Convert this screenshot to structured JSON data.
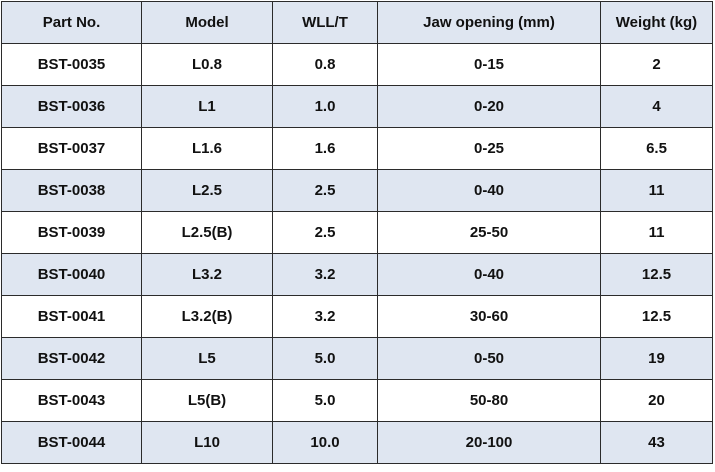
{
  "table": {
    "headers": [
      "Part No.",
      "Model",
      "WLL/T",
      "Jaw opening (mm)",
      "Weight (kg)"
    ],
    "rows": [
      [
        "BST-0035",
        "L0.8",
        "0.8",
        "0-15",
        "2"
      ],
      [
        "BST-0036",
        "L1",
        "1.0",
        "0-20",
        "4"
      ],
      [
        "BST-0037",
        "L1.6",
        "1.6",
        "0-25",
        "6.5"
      ],
      [
        "BST-0038",
        "L2.5",
        "2.5",
        "0-40",
        "11"
      ],
      [
        "BST-0039",
        "L2.5(B)",
        "2.5",
        "25-50",
        "11"
      ],
      [
        "BST-0040",
        "L3.2",
        "3.2",
        "0-40",
        "12.5"
      ],
      [
        "BST-0041",
        "L3.2(B)",
        "3.2",
        "30-60",
        "12.5"
      ],
      [
        "BST-0042",
        "L5",
        "5.0",
        "0-50",
        "19"
      ],
      [
        "BST-0043",
        "L5(B)",
        "5.0",
        "50-80",
        "20"
      ],
      [
        "BST-0044",
        "L10",
        "10.0",
        "20-100",
        "43"
      ]
    ]
  },
  "colors": {
    "header_bg": "#dfe6f1",
    "stripe_bg": "#dfe6f1",
    "row_bg": "#ffffff",
    "border": "#2b2b2b",
    "text": "#111111"
  }
}
